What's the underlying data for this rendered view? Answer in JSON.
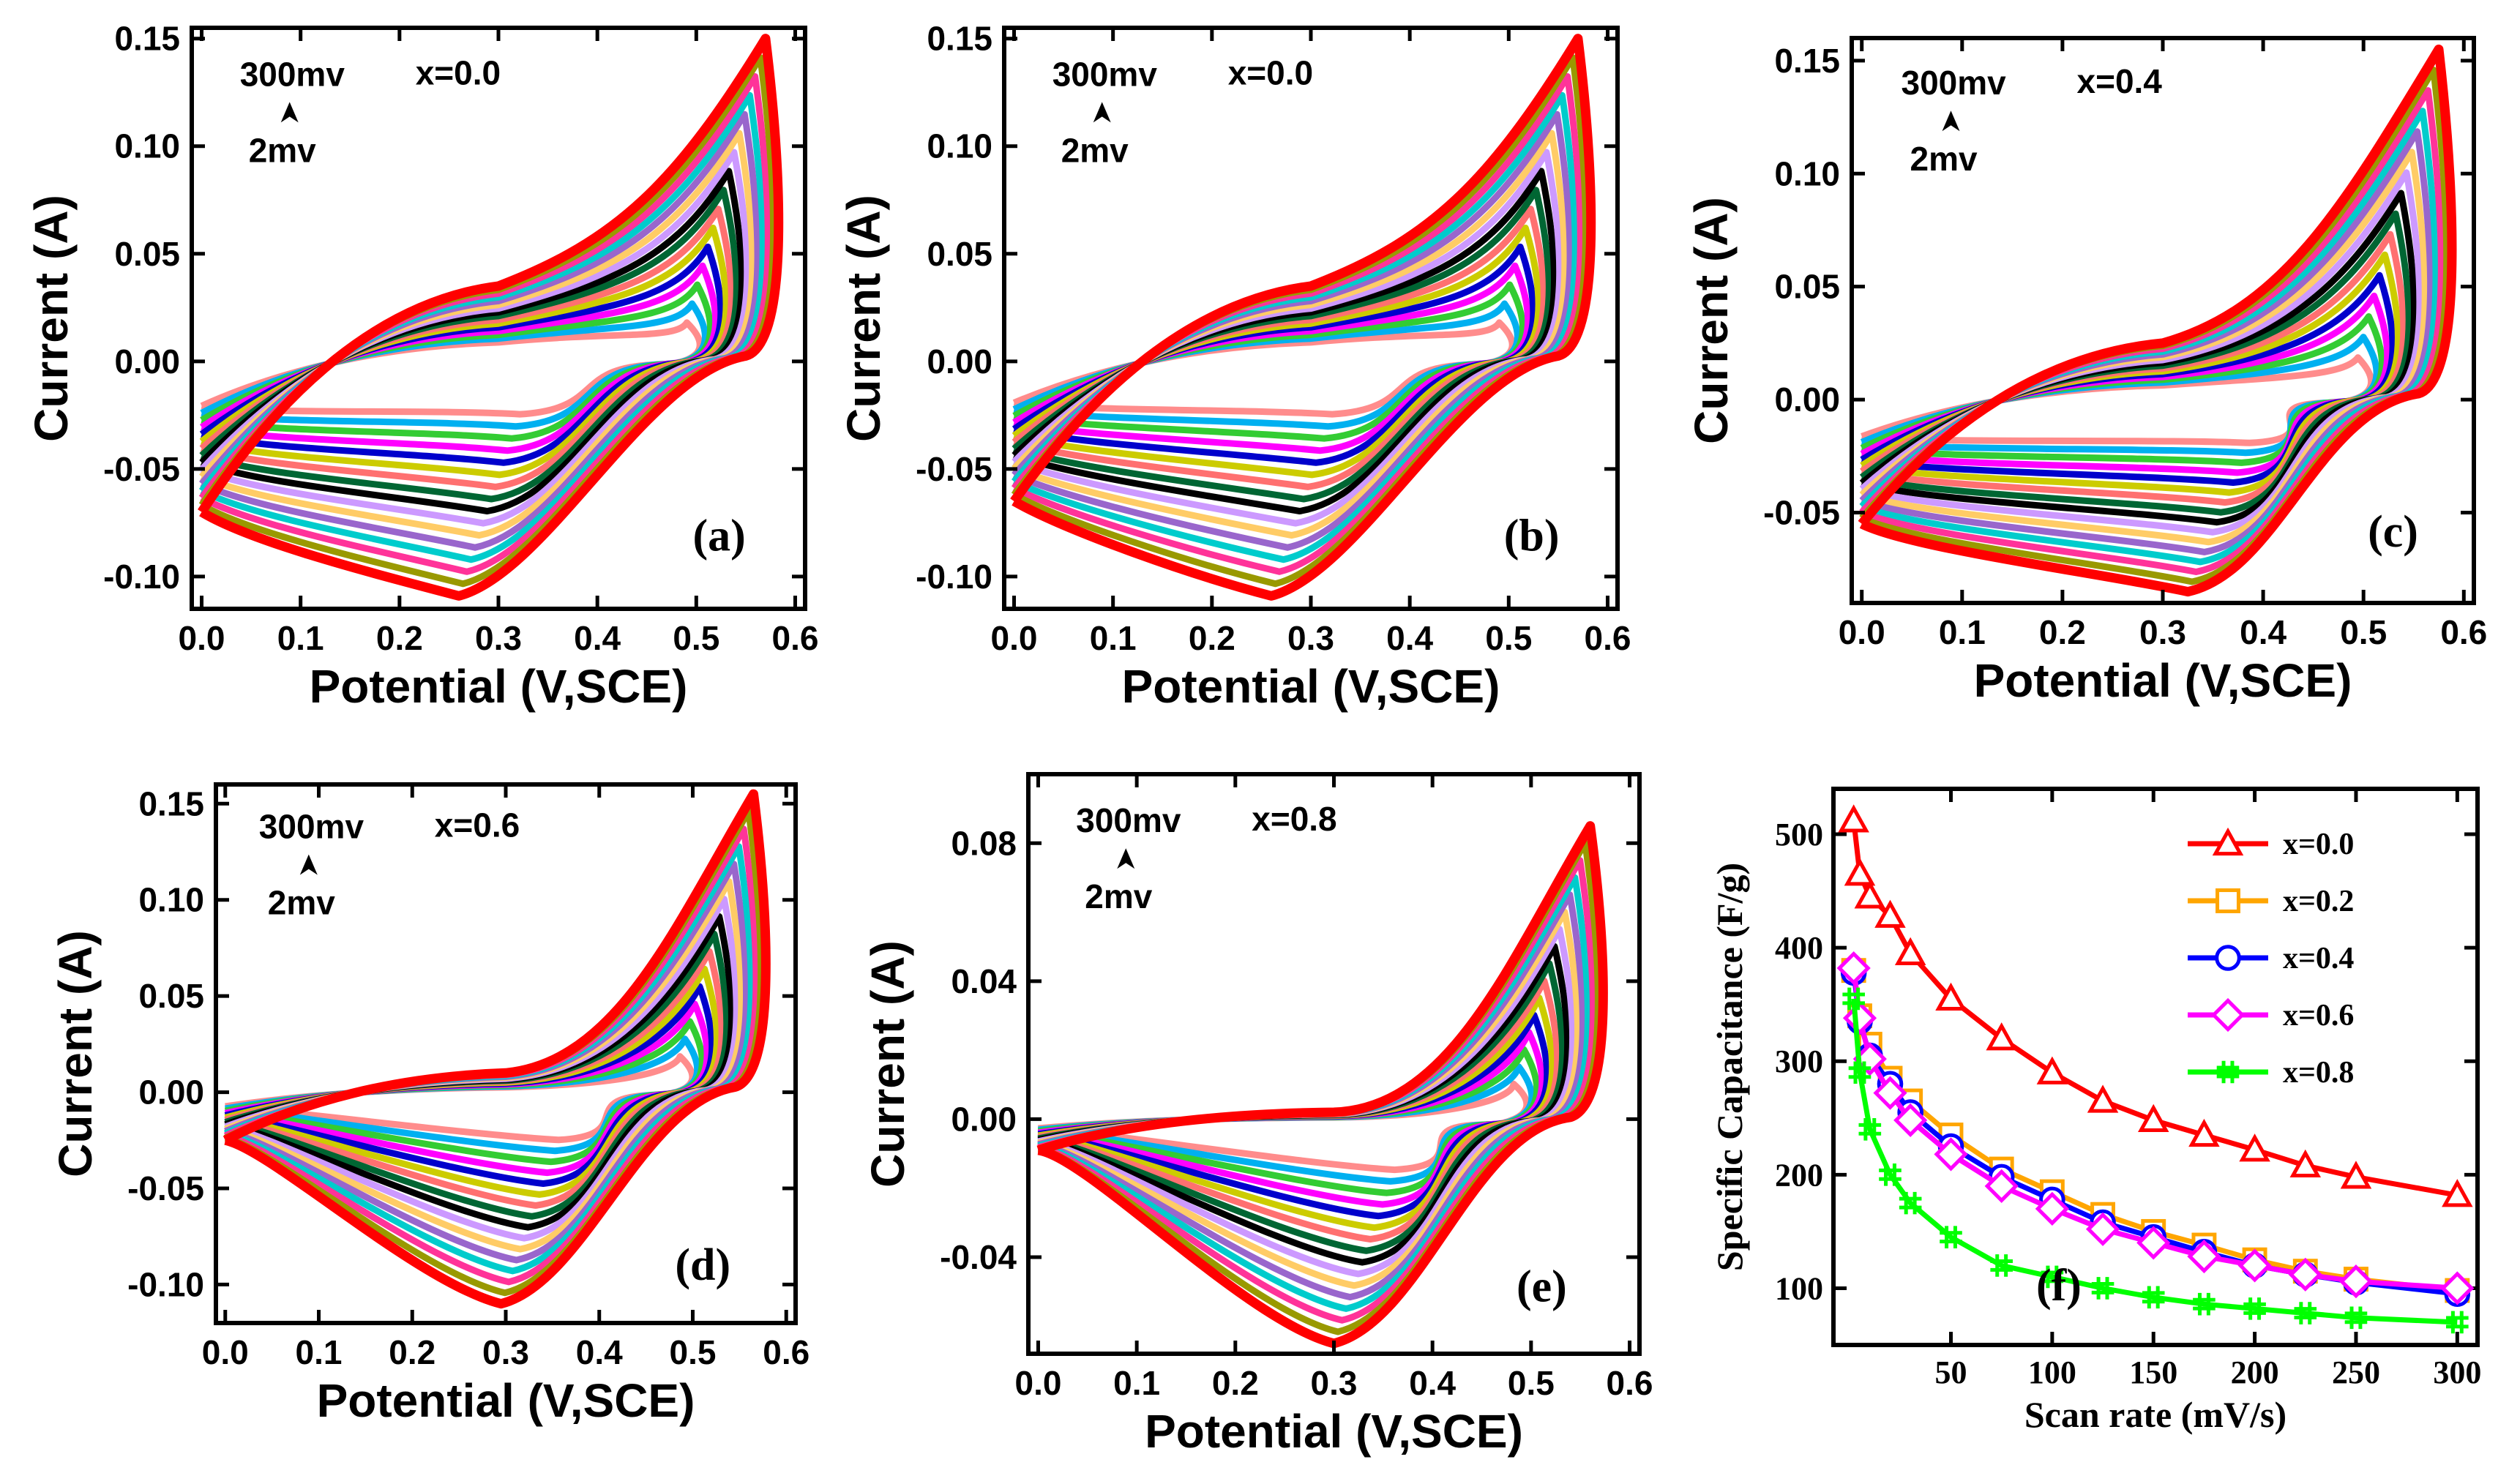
{
  "colors": [
    "#ff8c8c",
    "#00b0f0",
    "#33cc33",
    "#ff00ff",
    "#0000cc",
    "#cccc00",
    "#ff7070",
    "#006633",
    "#000000",
    "#cc99ff",
    "#ffcc66",
    "#9966cc",
    "#00cccc",
    "#ff3399",
    "#999900",
    "#cc0000"
  ],
  "chart_data": [
    {
      "type": "line",
      "panel": "(a)",
      "x_label": "Potential (V,SCE)",
      "y_label": "Current (A)",
      "xlim": [
        -0.01,
        0.61
      ],
      "ylim": [
        -0.115,
        0.155
      ],
      "xticks": [
        "0.0",
        "0.1",
        "0.2",
        "0.3",
        "0.4",
        "0.5",
        "0.6"
      ],
      "xtick_values": [
        0,
        0.1,
        0.2,
        0.3,
        0.4,
        0.5,
        0.6
      ],
      "yticks": [
        "0.15",
        "0.10",
        "0.05",
        "0.00",
        "-0.05",
        "-0.10"
      ],
      "ytick_values": [
        0.15,
        0.1,
        0.05,
        0.0,
        -0.05,
        -0.1
      ],
      "composition": "x=0.0",
      "scan_rate_high": "300mv",
      "scan_rate_low": "2mv",
      "series_count": 16,
      "cv": {
        "peak_anodic": [
          0.57,
          0.15
        ],
        "peak_cathodic": [
          0.26,
          -0.109
        ],
        "start": [
          0.0,
          -0.07
        ],
        "mid": [
          0.3,
          0.035
        ]
      }
    },
    {
      "type": "line",
      "panel": "(b)",
      "x_label": "Potential (V,SCE)",
      "y_label": "Current (A)",
      "xlim": [
        -0.01,
        0.61
      ],
      "ylim": [
        -0.115,
        0.155
      ],
      "xticks": [
        "0.0",
        "0.1",
        "0.2",
        "0.3",
        "0.4",
        "0.5",
        "0.6"
      ],
      "xtick_values": [
        0,
        0.1,
        0.2,
        0.3,
        0.4,
        0.5,
        0.6
      ],
      "yticks": [
        "0.15",
        "0.10",
        "0.05",
        "0.00",
        "-0.05",
        "-0.10"
      ],
      "ytick_values": [
        0.15,
        0.1,
        0.05,
        0.0,
        -0.05,
        -0.1
      ],
      "composition": "x=0.0",
      "scan_rate_high": "300mv",
      "scan_rate_low": "2mv",
      "series_count": 16,
      "cv": {
        "peak_anodic": [
          0.57,
          0.15
        ],
        "peak_cathodic": [
          0.26,
          -0.109
        ],
        "start": [
          0.0,
          -0.065
        ],
        "mid": [
          0.3,
          0.035
        ]
      }
    },
    {
      "type": "line",
      "panel": "(c)",
      "x_label": "Potential (V,SCE)",
      "y_label": "Current (A)",
      "xlim": [
        -0.01,
        0.61
      ],
      "ylim": [
        -0.09,
        0.16
      ],
      "xticks": [
        "0.0",
        "0.1",
        "0.2",
        "0.3",
        "0.4",
        "0.5",
        "0.6"
      ],
      "xtick_values": [
        0,
        0.1,
        0.2,
        0.3,
        0.4,
        0.5,
        0.6
      ],
      "yticks": [
        "0.15",
        "0.10",
        "0.05",
        "0.00",
        "-0.05"
      ],
      "ytick_values": [
        0.15,
        0.1,
        0.05,
        0.0,
        -0.05
      ],
      "composition": "x=0.4",
      "scan_rate_high": "300mv",
      "scan_rate_low": "2mv",
      "series_count": 16,
      "cv": {
        "peak_anodic": [
          0.575,
          0.155
        ],
        "peak_cathodic": [
          0.325,
          -0.085
        ],
        "start": [
          0.0,
          -0.055
        ],
        "mid": [
          0.3,
          0.025
        ]
      }
    },
    {
      "type": "line",
      "panel": "(d)",
      "x_label": "Potential (V,SCE)",
      "y_label": "Current (A)",
      "xlim": [
        -0.01,
        0.61
      ],
      "ylim": [
        -0.12,
        0.16
      ],
      "xticks": [
        "0.0",
        "0.1",
        "0.2",
        "0.3",
        "0.4",
        "0.5",
        "0.6"
      ],
      "xtick_values": [
        0,
        0.1,
        0.2,
        0.3,
        0.4,
        0.5,
        0.6
      ],
      "yticks": [
        "0.15",
        "0.10",
        "0.05",
        "0.00",
        "-0.05",
        "-0.10"
      ],
      "ytick_values": [
        0.15,
        0.1,
        0.05,
        0.0,
        -0.05,
        -0.1
      ],
      "composition": "x=0.6",
      "scan_rate_high": "300mv",
      "scan_rate_low": "2mv",
      "series_count": 16,
      "cv": {
        "peak_anodic": [
          0.565,
          0.155
        ],
        "peak_cathodic": [
          0.295,
          -0.11
        ],
        "start": [
          0.0,
          -0.025
        ],
        "mid": [
          0.3,
          0.01
        ]
      }
    },
    {
      "type": "line",
      "panel": "(e)",
      "x_label": "Potential (V,SCE)",
      "y_label": "Current (A)",
      "xlim": [
        -0.01,
        0.61
      ],
      "ylim": [
        -0.068,
        0.1
      ],
      "xticks": [
        "0.0",
        "0.1",
        "0.2",
        "0.3",
        "0.4",
        "0.5",
        "0.6"
      ],
      "xtick_values": [
        0,
        0.1,
        0.2,
        0.3,
        0.4,
        0.5,
        0.6
      ],
      "yticks": [
        "0.08",
        "0.04",
        "0.00",
        "-0.04"
      ],
      "ytick_values": [
        0.08,
        0.04,
        0.0,
        -0.04
      ],
      "composition": "x=0.8",
      "scan_rate_high": "300mv",
      "scan_rate_low": "2mv",
      "series_count": 16,
      "cv": {
        "peak_anodic": [
          0.56,
          0.085
        ],
        "peak_cathodic": [
          0.3,
          -0.065
        ],
        "start": [
          0.0,
          -0.009
        ],
        "mid": [
          0.3,
          0.002
        ]
      }
    },
    {
      "type": "line",
      "panel": "(f)",
      "x_label": "Scan rate (mV/s)",
      "y_label": "Specific Capacitance (F/g)",
      "xlim": [
        -8,
        310
      ],
      "ylim": [
        50,
        540
      ],
      "xticks": [
        "50",
        "100",
        "150",
        "200",
        "250",
        "300"
      ],
      "xtick_values": [
        50,
        100,
        150,
        200,
        250,
        300
      ],
      "yticks": [
        "100",
        "200",
        "300",
        "400",
        "500"
      ],
      "ytick_values": [
        100,
        200,
        300,
        400,
        500
      ],
      "x": [
        2,
        5,
        10,
        20,
        30,
        50,
        75,
        100,
        125,
        150,
        175,
        200,
        225,
        250,
        300
      ],
      "series": [
        {
          "name": "x=0.0",
          "color": "#ff0000",
          "marker": "triangle",
          "values": [
            512,
            465,
            445,
            428,
            395,
            355,
            320,
            290,
            265,
            248,
            235,
            222,
            208,
            198,
            182
          ]
        },
        {
          "name": "x=0.2",
          "color": "#ffa500",
          "marker": "square",
          "values": [
            380,
            340,
            315,
            285,
            265,
            235,
            205,
            185,
            165,
            150,
            138,
            125,
            115,
            108,
            98
          ]
        },
        {
          "name": "x=0.4",
          "color": "#0000ff",
          "marker": "circle",
          "values": [
            378,
            335,
            305,
            280,
            255,
            225,
            198,
            178,
            158,
            145,
            132,
            120,
            112,
            105,
            95
          ]
        },
        {
          "name": "x=0.6",
          "color": "#ff00ff",
          "marker": "diamond",
          "values": [
            382,
            338,
            302,
            272,
            248,
            218,
            190,
            170,
            152,
            140,
            128,
            120,
            112,
            106,
            100
          ]
        },
        {
          "name": "x=0.8",
          "color": "#00ff00",
          "marker": "hash",
          "values": [
            355,
            290,
            240,
            200,
            175,
            145,
            120,
            110,
            100,
            92,
            86,
            82,
            78,
            74,
            70
          ]
        }
      ]
    }
  ]
}
